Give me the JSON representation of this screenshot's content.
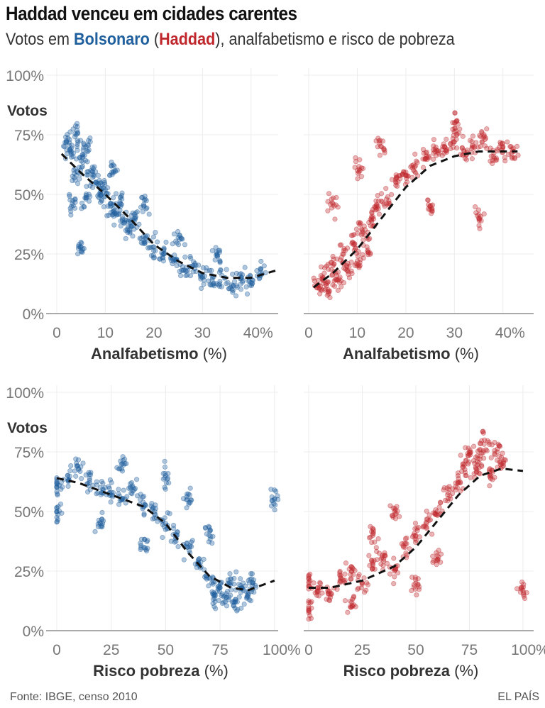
{
  "title": "Haddad venceu em cidades carentes",
  "subtitle": {
    "prefix": "Votos em ",
    "bolsonaro": "Bolsonaro",
    "open": " (",
    "haddad": "Haddad",
    "suffix": "), analfabetismo e risco de pobreza"
  },
  "colors": {
    "bolsonaro": "#1f5f9e",
    "haddad": "#c0272d",
    "trend": "#111111"
  },
  "footer": {
    "source": "Fonte: IBGE, censo 2010",
    "brand": "EL PAÍS"
  },
  "chart_data": [
    {
      "type": "scatter",
      "id": "tl",
      "series": "bolsonaro",
      "ylabel": "Votos",
      "xlabel_bold": "Analfabetismo",
      "xlabel_unit": " (%)",
      "xlim": [
        0,
        45
      ],
      "ylim": [
        0,
        100
      ],
      "xticks": [
        "0",
        "10",
        "20",
        "30",
        "40%"
      ],
      "xtick_values": [
        0,
        10,
        20,
        30,
        40
      ],
      "yticks": [
        "0%",
        "25%",
        "50%",
        "75%",
        "100%"
      ],
      "ytick_values": [
        0,
        25,
        50,
        75,
        100
      ],
      "trend": [
        [
          1,
          67
        ],
        [
          5,
          59
        ],
        [
          10,
          50
        ],
        [
          15,
          40
        ],
        [
          20,
          29
        ],
        [
          25,
          22
        ],
        [
          30,
          17
        ],
        [
          35,
          15
        ],
        [
          40,
          15
        ],
        [
          45,
          18
        ]
      ],
      "points": [
        [
          2,
          72
        ],
        [
          3,
          68
        ],
        [
          4,
          75
        ],
        [
          5,
          64
        ],
        [
          4,
          58
        ],
        [
          6,
          70
        ],
        [
          7,
          60
        ],
        [
          8,
          55
        ],
        [
          9,
          50
        ],
        [
          6,
          48
        ],
        [
          10,
          52
        ],
        [
          11,
          45
        ],
        [
          12,
          42
        ],
        [
          13,
          47
        ],
        [
          14,
          38
        ],
        [
          15,
          35
        ],
        [
          16,
          40
        ],
        [
          18,
          30
        ],
        [
          20,
          28
        ],
        [
          22,
          25
        ],
        [
          24,
          22
        ],
        [
          26,
          18
        ],
        [
          28,
          20
        ],
        [
          30,
          15
        ],
        [
          32,
          14
        ],
        [
          34,
          16
        ],
        [
          36,
          12
        ],
        [
          38,
          15
        ],
        [
          40,
          13
        ],
        [
          42,
          16
        ],
        [
          3,
          45
        ],
        [
          5,
          28
        ],
        [
          12,
          60
        ],
        [
          18,
          45
        ],
        [
          25,
          32
        ],
        [
          33,
          25
        ]
      ]
    },
    {
      "type": "scatter",
      "id": "tr",
      "series": "haddad",
      "ylabel": "",
      "xlabel_bold": "Analfabetismo",
      "xlabel_unit": " (%)",
      "xlim": [
        0,
        45
      ],
      "ylim": [
        0,
        100
      ],
      "xticks": [
        "0",
        "10",
        "20",
        "30",
        "40%"
      ],
      "xtick_values": [
        0,
        10,
        20,
        30,
        40
      ],
      "yticks": [],
      "ytick_values": [
        0,
        25,
        50,
        75,
        100
      ],
      "trend": [
        [
          1,
          11
        ],
        [
          5,
          17
        ],
        [
          10,
          27
        ],
        [
          15,
          40
        ],
        [
          20,
          53
        ],
        [
          25,
          62
        ],
        [
          30,
          66
        ],
        [
          35,
          68
        ],
        [
          40,
          68
        ],
        [
          43,
          68
        ]
      ],
      "points": [
        [
          2,
          12
        ],
        [
          3,
          15
        ],
        [
          4,
          10
        ],
        [
          5,
          20
        ],
        [
          6,
          14
        ],
        [
          7,
          25
        ],
        [
          8,
          18
        ],
        [
          9,
          30
        ],
        [
          10,
          22
        ],
        [
          11,
          35
        ],
        [
          12,
          28
        ],
        [
          13,
          40
        ],
        [
          14,
          45
        ],
        [
          16,
          48
        ],
        [
          18,
          55
        ],
        [
          20,
          58
        ],
        [
          22,
          62
        ],
        [
          24,
          65
        ],
        [
          26,
          68
        ],
        [
          28,
          70
        ],
        [
          30,
          72
        ],
        [
          32,
          68
        ],
        [
          34,
          70
        ],
        [
          36,
          74
        ],
        [
          38,
          66
        ],
        [
          40,
          70
        ],
        [
          42,
          68
        ],
        [
          5,
          46
        ],
        [
          15,
          70
        ],
        [
          25,
          45
        ],
        [
          35,
          40
        ],
        [
          10,
          60
        ],
        [
          30,
          80
        ]
      ]
    },
    {
      "type": "scatter",
      "id": "bl",
      "series": "bolsonaro",
      "ylabel": "Votos",
      "xlabel_bold": "Risco pobreza",
      "xlabel_unit": " (%)",
      "xlim": [
        0,
        102
      ],
      "ylim": [
        0,
        100
      ],
      "xticks": [
        "0",
        "25",
        "50",
        "75",
        "100%"
      ],
      "xtick_values": [
        0,
        25,
        50,
        75,
        100
      ],
      "yticks": [
        "0%",
        "25%",
        "50%",
        "75%",
        "100%"
      ],
      "ytick_values": [
        0,
        25,
        50,
        75,
        100
      ],
      "trend": [
        [
          0,
          64
        ],
        [
          10,
          62
        ],
        [
          25,
          57
        ],
        [
          40,
          52
        ],
        [
          50,
          45
        ],
        [
          60,
          33
        ],
        [
          70,
          23
        ],
        [
          80,
          18
        ],
        [
          88,
          17
        ],
        [
          100,
          21
        ]
      ],
      "points": [
        [
          0,
          60
        ],
        [
          0,
          50
        ],
        [
          5,
          65
        ],
        [
          10,
          68
        ],
        [
          15,
          62
        ],
        [
          20,
          60
        ],
        [
          25,
          58
        ],
        [
          30,
          55
        ],
        [
          35,
          60
        ],
        [
          40,
          52
        ],
        [
          45,
          50
        ],
        [
          50,
          45
        ],
        [
          55,
          40
        ],
        [
          60,
          35
        ],
        [
          65,
          28
        ],
        [
          70,
          22
        ],
        [
          72,
          15
        ],
        [
          75,
          18
        ],
        [
          78,
          14
        ],
        [
          80,
          20
        ],
        [
          82,
          12
        ],
        [
          85,
          18
        ],
        [
          88,
          15
        ],
        [
          90,
          20
        ],
        [
          20,
          45
        ],
        [
          30,
          70
        ],
        [
          40,
          35
        ],
        [
          60,
          55
        ],
        [
          70,
          40
        ],
        [
          50,
          65
        ],
        [
          100,
          55
        ]
      ]
    },
    {
      "type": "scatter",
      "id": "br",
      "series": "haddad",
      "ylabel": "",
      "xlabel_bold": "Risco pobreza",
      "xlabel_unit": " (%)",
      "xlim": [
        0,
        102
      ],
      "ylim": [
        0,
        100
      ],
      "xticks": [
        "0",
        "25",
        "50",
        "75",
        "100%"
      ],
      "xtick_values": [
        0,
        25,
        50,
        75,
        100
      ],
      "yticks": [],
      "ytick_values": [
        0,
        25,
        50,
        75,
        100
      ],
      "trend": [
        [
          0,
          18
        ],
        [
          10,
          18
        ],
        [
          25,
          21
        ],
        [
          40,
          27
        ],
        [
          50,
          35
        ],
        [
          60,
          46
        ],
        [
          70,
          57
        ],
        [
          80,
          65
        ],
        [
          90,
          68
        ],
        [
          100,
          67
        ]
      ],
      "points": [
        [
          0,
          20
        ],
        [
          0,
          10
        ],
        [
          5,
          18
        ],
        [
          10,
          15
        ],
        [
          15,
          22
        ],
        [
          20,
          25
        ],
        [
          25,
          20
        ],
        [
          30,
          28
        ],
        [
          35,
          30
        ],
        [
          40,
          25
        ],
        [
          45,
          35
        ],
        [
          50,
          40
        ],
        [
          55,
          45
        ],
        [
          60,
          50
        ],
        [
          65,
          58
        ],
        [
          70,
          62
        ],
        [
          72,
          70
        ],
        [
          75,
          75
        ],
        [
          78,
          68
        ],
        [
          80,
          72
        ],
        [
          82,
          80
        ],
        [
          85,
          65
        ],
        [
          88,
          75
        ],
        [
          90,
          70
        ],
        [
          30,
          40
        ],
        [
          20,
          10
        ],
        [
          40,
          50
        ],
        [
          60,
          30
        ],
        [
          50,
          20
        ],
        [
          100,
          17
        ]
      ]
    }
  ]
}
